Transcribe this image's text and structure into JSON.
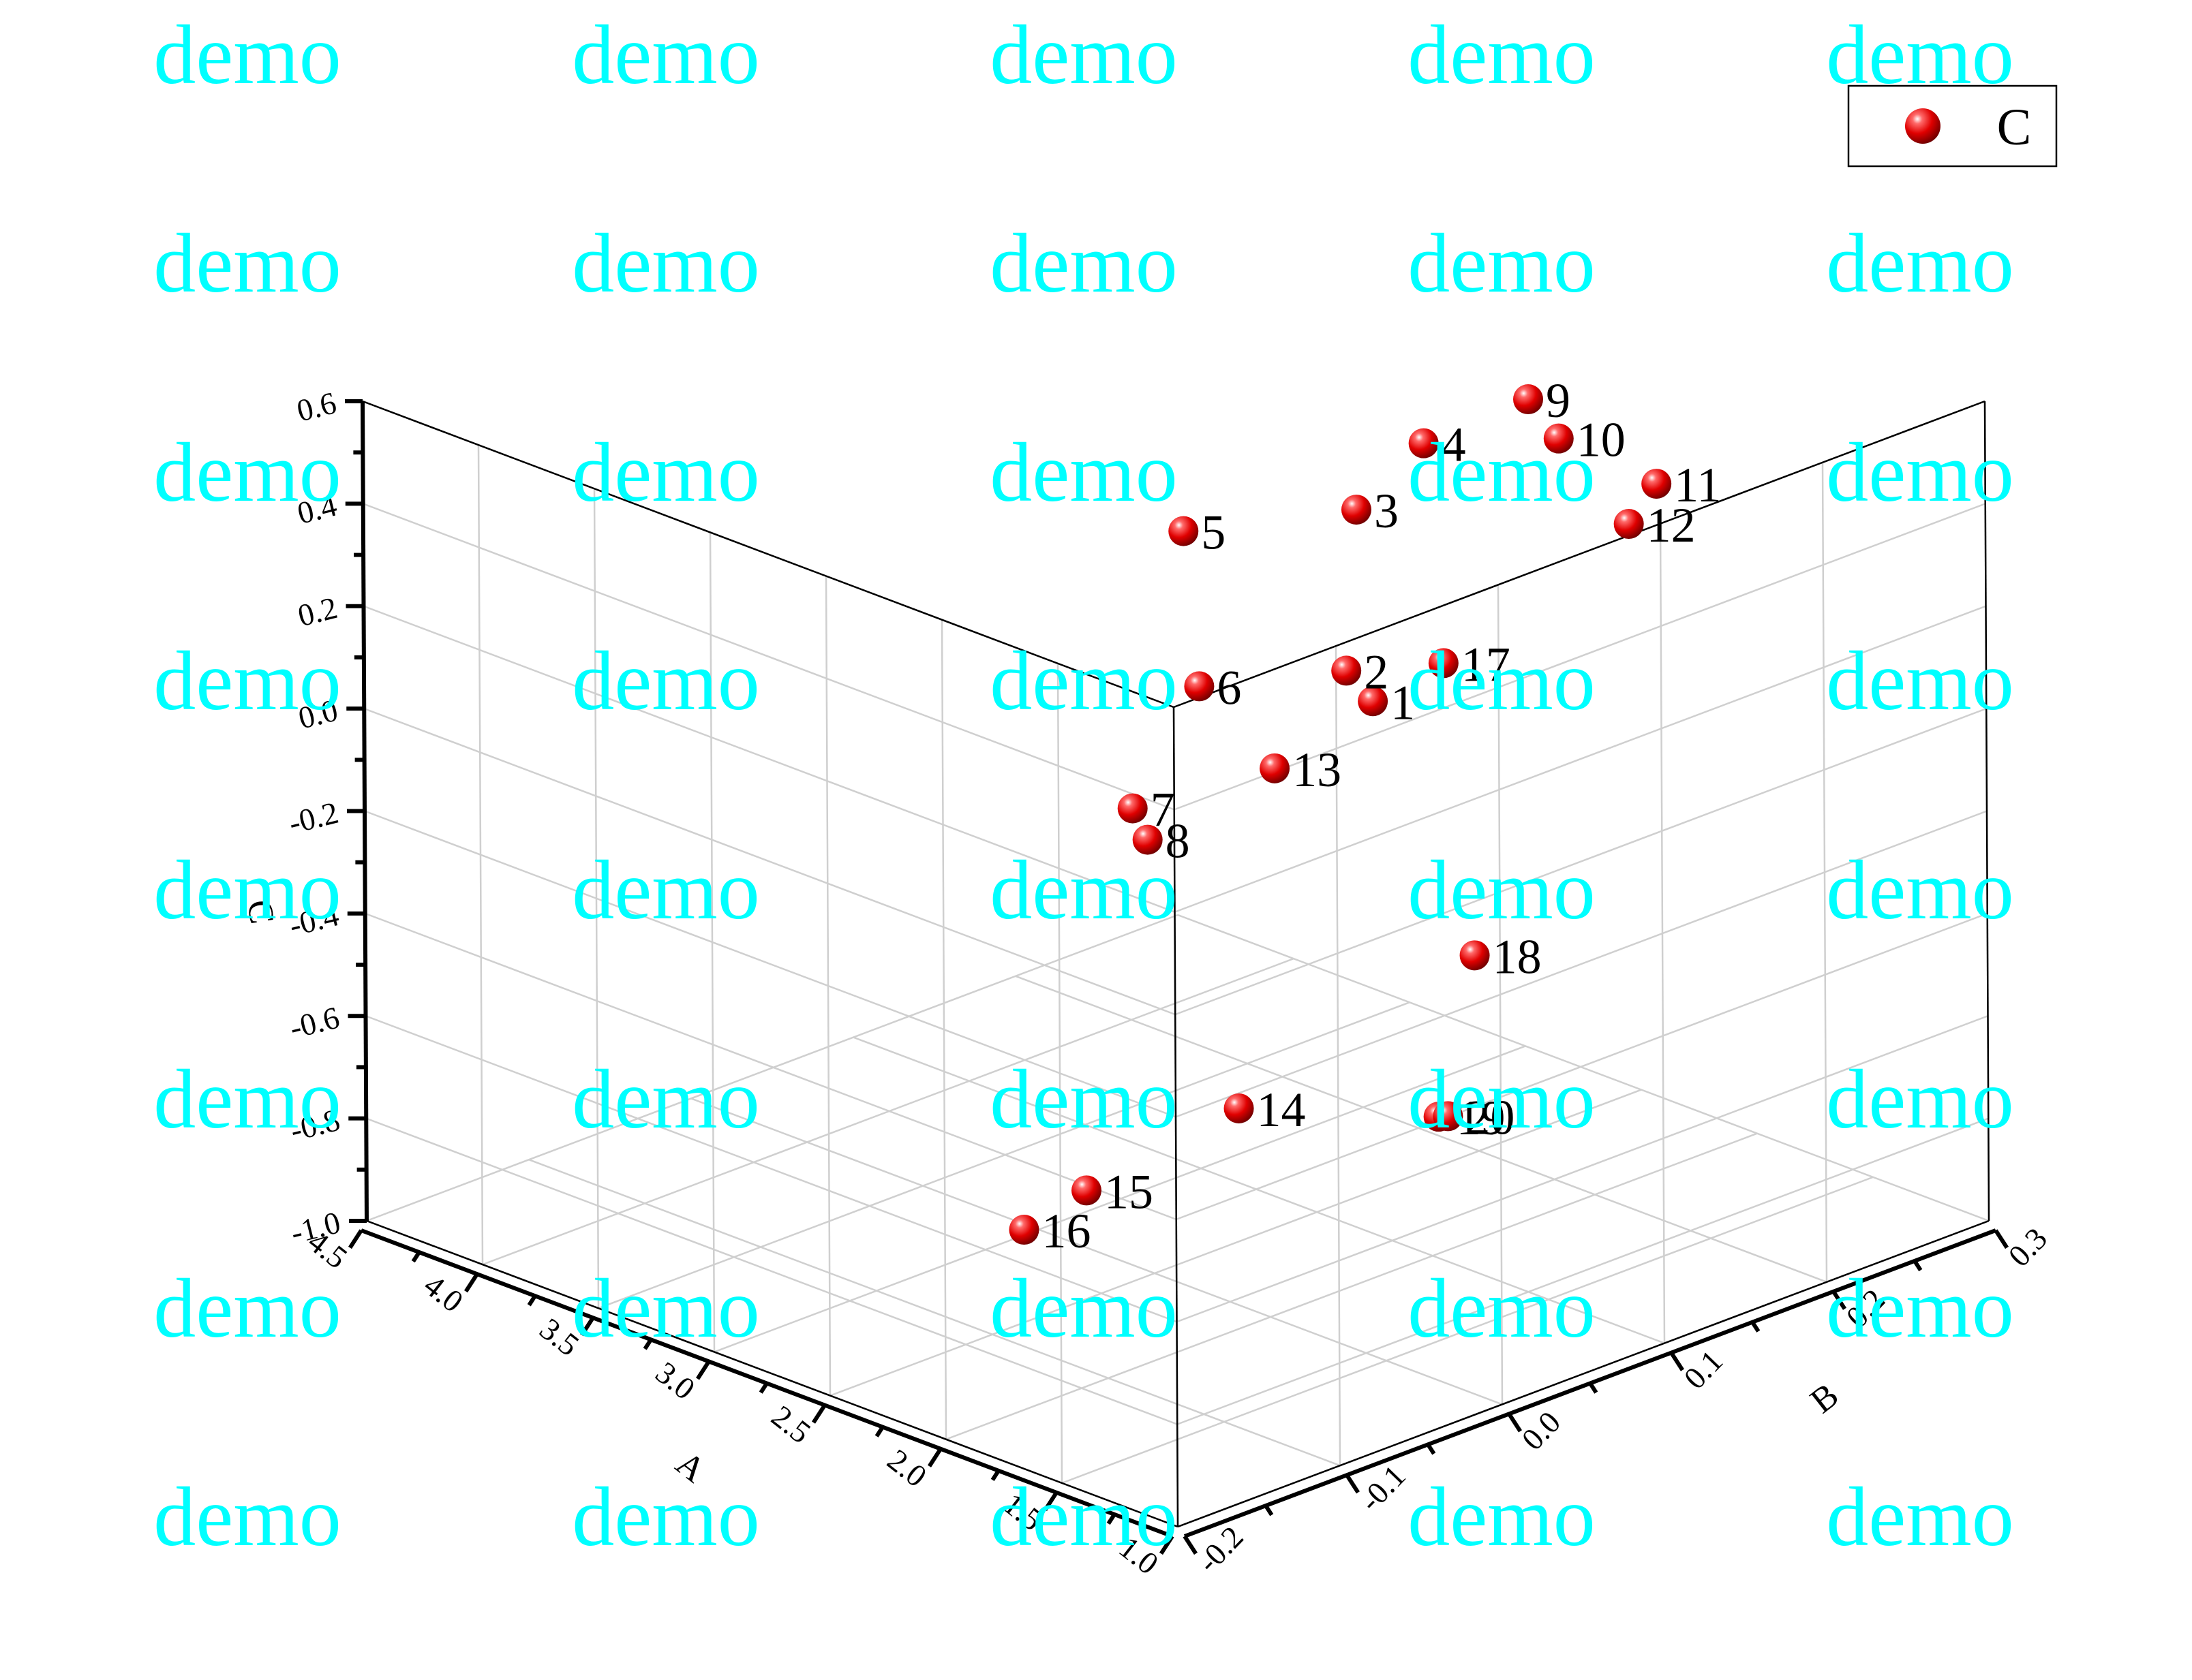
{
  "chart_data": {
    "type": "scatter3d",
    "xlabel": "A",
    "ylabel": "B",
    "zlabel": "C",
    "xlim": [
      1.0,
      4.5
    ],
    "ylim": [
      -0.2,
      0.3
    ],
    "zlim": [
      -1.0,
      0.6
    ],
    "x_ticks": [
      "1.0",
      "1.5",
      "2.0",
      "2.5",
      "3.0",
      "3.5",
      "4.0",
      "4.5"
    ],
    "y_ticks": [
      "-0.2",
      "-0.1",
      "0.0",
      "0.1",
      "0.2",
      "0.3"
    ],
    "z_ticks": [
      "-1.0",
      "-0.8",
      "-0.6",
      "-0.4",
      "-0.2",
      "0.0",
      "0.2",
      "0.4",
      "0.6"
    ],
    "grid": true,
    "legend": {
      "placement": "top-right",
      "entries": [
        "C"
      ]
    },
    "marker_color": "#e00000",
    "series": [
      {
        "name": "C",
        "points": [
          {
            "label": "1",
            "a": 1.72,
            "b": 0.025,
            "c": 0.22
          },
          {
            "label": "2",
            "a": 1.82,
            "b": 0.023,
            "c": 0.265
          },
          {
            "label": "3",
            "a": 1.78,
            "b": 0.024,
            "c": 0.585
          },
          {
            "label": "4",
            "a": 1.53,
            "b": 0.03,
            "c": 0.75
          },
          {
            "label": "5",
            "a": 2.5,
            "b": 0.02,
            "c": 0.425
          },
          {
            "label": "6",
            "a": 2.4,
            "b": 0.015,
            "c": 0.145
          },
          {
            "label": "7",
            "a": 2.55,
            "b": -0.005,
            "c": -0.095
          },
          {
            "label": "8",
            "a": 2.5,
            "b": -0.003,
            "c": -0.15
          },
          {
            "label": "9",
            "a": 1.85,
            "b": 0.14,
            "c": 0.65
          },
          {
            "label": "10",
            "a": 2.0,
            "b": 0.18,
            "c": 0.5
          },
          {
            "label": "11",
            "a": 2.0,
            "b": 0.24,
            "c": 0.34
          },
          {
            "label": "12",
            "a": 2.05,
            "b": 0.23,
            "c": 0.265
          },
          {
            "label": "13",
            "a": 1.9,
            "b": -0.01,
            "c": 0.1
          },
          {
            "label": "14",
            "a": 1.5,
            "b": -0.09,
            "c": -0.4
          },
          {
            "label": "15",
            "a": 2.02,
            "b": -0.11,
            "c": -0.625
          },
          {
            "label": "16",
            "a": 2.15,
            "b": -0.13,
            "c": -0.7
          },
          {
            "label": "17",
            "a": 1.8,
            "b": 0.08,
            "c": 0.215
          },
          {
            "label": "18",
            "a": 1.25,
            "b": 0.02,
            "c": -0.19
          },
          {
            "label": "19",
            "a": 1.55,
            "b": 0.04,
            "c": -0.58
          },
          {
            "label": "20",
            "a": 1.65,
            "b": 0.06,
            "c": -0.62
          }
        ]
      }
    ]
  },
  "watermark": {
    "text": "demo",
    "color": "#00ffff"
  }
}
